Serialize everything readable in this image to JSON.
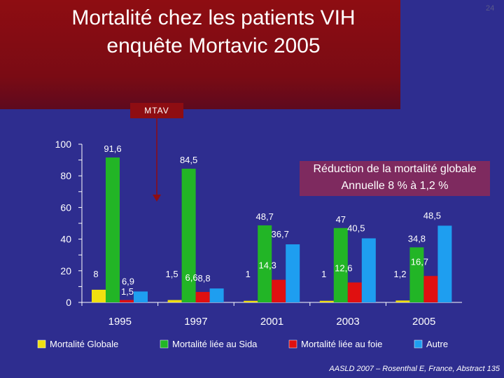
{
  "title_line1": "Mortalité chez les patients VIH",
  "title_line2": "enquête Mortavic 2005",
  "page_number": "24",
  "annotation_mtav": "MTAV",
  "callout_line1": "Réduction de la mortalité globale",
  "callout_line2": "Annuelle 8 % à 1,2 %",
  "source": "AASLD 2007 – Rosenthal E, France, Abstract 135",
  "colors": {
    "background": "#2e2d8f",
    "title_band": "#8e0d12",
    "callout": "#7e2a5f"
  },
  "chart_data": {
    "type": "bar",
    "categories": [
      "1995",
      "1997",
      "2001",
      "2003",
      "2005"
    ],
    "ylim": [
      0,
      100
    ],
    "yticks": [
      "0",
      "20",
      "40",
      "60",
      "80",
      "100"
    ],
    "ytick_values": [
      0,
      20,
      40,
      60,
      80,
      100
    ],
    "grid": false,
    "legend_position": "bottom",
    "series": [
      {
        "name": "Mortalité Globale",
        "color": "#f0e010",
        "values": [
          8,
          1.5,
          1,
          1,
          1.2
        ],
        "labels": [
          "8",
          "1,5",
          "1",
          "1",
          "1,2"
        ]
      },
      {
        "name": "Mortalité liée au Sida",
        "color": "#22b526",
        "values": [
          91.6,
          84.5,
          48.7,
          47,
          34.8
        ],
        "labels": [
          "91,6",
          "84,5",
          "48,7",
          "47",
          "34,8"
        ]
      },
      {
        "name": "Mortalité liée au foie",
        "color": "#e01010",
        "values": [
          1.5,
          6.6,
          14.3,
          12.6,
          16.7
        ],
        "labels": [
          "",
          "6,6",
          "14,3",
          "12,6",
          "16,7"
        ]
      },
      {
        "name": "Autre",
        "color": "#1e9ef0",
        "values": [
          6.9,
          8.8,
          36.7,
          40.5,
          48.5
        ],
        "labels": [
          "6,9",
          "8,8",
          "36,7",
          "40,5",
          "48,5"
        ]
      }
    ]
  }
}
